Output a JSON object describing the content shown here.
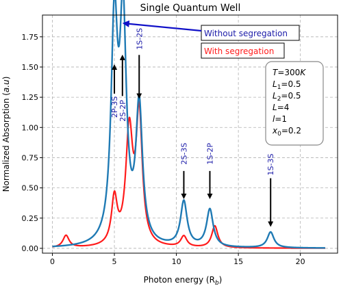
{
  "chart_data": {
    "type": "line",
    "title": "Single Quantum Well",
    "xlabel": "Photon energy (R",
    "xlabel_sub": "b",
    "xlabel_end": ")",
    "ylabel": "Normalized Absorption (",
    "ylabel_unit": "a.u",
    "ylabel_end": ")",
    "xlim": [
      -0.8,
      23
    ],
    "ylim": [
      -0.04,
      1.93
    ],
    "xticks": [
      0,
      5,
      10,
      15,
      20
    ],
    "yticks": [
      0.0,
      0.25,
      0.5,
      0.75,
      1.0,
      1.25,
      1.5,
      1.75
    ],
    "ytick_labels": [
      "0.00",
      "0.25",
      "0.50",
      "0.75",
      "1.00",
      "1.25",
      "1.50",
      "1.75"
    ],
    "xtick_labels": [
      "0",
      "5",
      "10",
      "15",
      "20"
    ],
    "grid": true,
    "series": [
      {
        "name": "Without segregation",
        "color": "#1f7ab4",
        "peaks": [
          {
            "x": 5.0,
            "h": 1.78,
            "w": 0.32
          },
          {
            "x": 5.7,
            "h": 1.79,
            "w": 0.32
          },
          {
            "x": 7.0,
            "h": 1.12,
            "w": 0.32
          },
          {
            "x": 10.6,
            "h": 0.37,
            "w": 0.32
          },
          {
            "x": 12.7,
            "h": 0.31,
            "w": 0.32
          },
          {
            "x": 17.6,
            "h": 0.13,
            "w": 0.32
          }
        ],
        "x_start": 0,
        "x_end": 22
      },
      {
        "name": "With segregation",
        "color": "#ff1a1a",
        "peaks": [
          {
            "x": 1.1,
            "h": 0.1,
            "w": 0.3
          },
          {
            "x": 5.0,
            "h": 0.38,
            "w": 0.28
          },
          {
            "x": 6.2,
            "h": 0.93,
            "w": 0.34
          },
          {
            "x": 7.0,
            "h": 1.06,
            "w": 0.3
          },
          {
            "x": 10.6,
            "h": 0.09,
            "w": 0.3
          },
          {
            "x": 13.1,
            "h": 0.18,
            "w": 0.3
          }
        ],
        "x_start": 0,
        "x_end": 22
      }
    ],
    "peak_labels": [
      {
        "text": "2P-3S",
        "x": 5.0,
        "y": 1.28,
        "arrow_from": 1.28,
        "arrow_to": 1.5
      },
      {
        "text": "2S-2P",
        "x": 5.65,
        "y": 1.25,
        "arrow_from": 1.26,
        "arrow_to": 1.58
      },
      {
        "text": "1S-2S",
        "x": 7.0,
        "y": 1.62,
        "arrow_from": 1.6,
        "arrow_to": 1.26
      },
      {
        "text": "2S-3S",
        "x": 10.6,
        "y": 0.67,
        "arrow_from": 0.64,
        "arrow_to": 0.43
      },
      {
        "text": "1S-2P",
        "x": 12.7,
        "y": 0.67,
        "arrow_from": 0.64,
        "arrow_to": 0.43
      },
      {
        "text": "1S-3S",
        "x": 17.6,
        "y": 0.58,
        "arrow_from": 0.58,
        "arrow_to": 0.2
      }
    ],
    "annotations": [
      {
        "text": "Without segregation",
        "color": "#1a1aa8"
      },
      {
        "text": "With segregation",
        "color": "#ff1a1a"
      }
    ],
    "parameters": [
      {
        "sym": "T",
        "sub": "",
        "val": "=300",
        "unit": "K"
      },
      {
        "sym": "L",
        "sub": "1",
        "val": "=0.5",
        "unit": ""
      },
      {
        "sym": "L",
        "sub": "2",
        "val": "=0.5",
        "unit": ""
      },
      {
        "sym": "L",
        "sub": "",
        "val": "=4",
        "unit": ""
      },
      {
        "sym": "l",
        "sub": "",
        "val": "=1",
        "unit": ""
      },
      {
        "sym": "x",
        "sub": "0",
        "val": "=0.2",
        "unit": ""
      }
    ]
  }
}
